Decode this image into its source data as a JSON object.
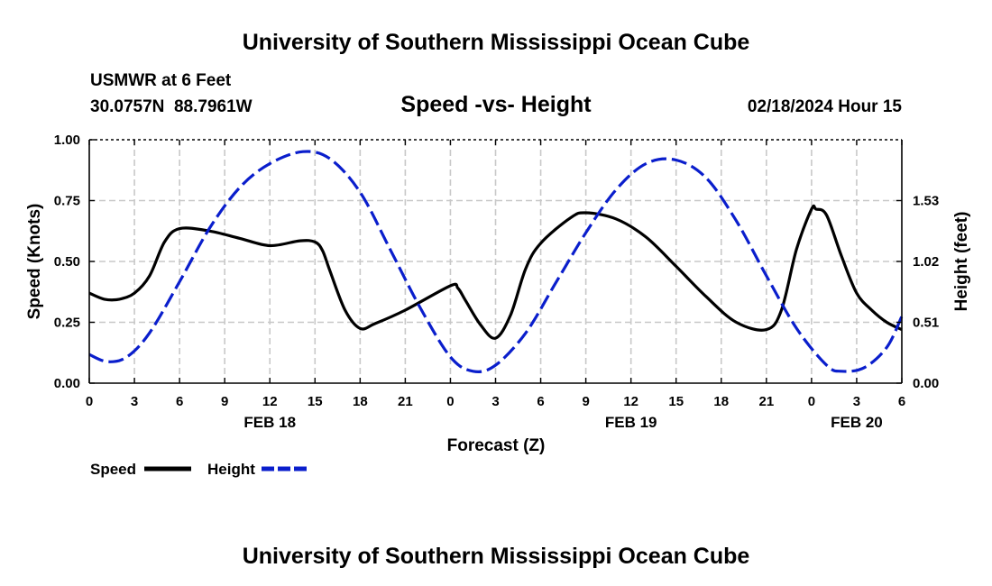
{
  "header": {
    "title": "University of Southern Mississippi Ocean Cube",
    "station": "USMWR at 6 Feet",
    "coords": "30.0757N  88.7961W",
    "datetime": "02/18/2024 Hour 15"
  },
  "footer": {
    "title": "University of Southern Mississippi Ocean Cube"
  },
  "chart_data": {
    "type": "line",
    "title": "Speed -vs- Height",
    "xlabel": "Forecast (Z)",
    "ylabel_left": "Speed (Knots)",
    "ylabel_right": "Height (feet)",
    "xlim": [
      0,
      54
    ],
    "ylim_left": [
      0,
      1.0
    ],
    "ylim_right": [
      0,
      2.04
    ],
    "grid": true,
    "x_ticks": [
      0,
      3,
      6,
      9,
      12,
      15,
      18,
      21,
      24,
      27,
      30,
      33,
      36,
      39,
      42,
      45,
      48,
      51,
      54
    ],
    "x_tick_labels": [
      "0",
      "3",
      "6",
      "9",
      "12",
      "15",
      "18",
      "21",
      "0",
      "3",
      "6",
      "9",
      "12",
      "15",
      "18",
      "21",
      "0",
      "3",
      "6"
    ],
    "left_ticks": [
      0,
      0.25,
      0.5,
      0.75,
      1.0
    ],
    "left_tick_labels": [
      "0.00",
      "0.25",
      "0.50",
      "0.75",
      "1.00"
    ],
    "right_ticks": [
      0,
      0.51,
      1.02,
      1.53
    ],
    "right_tick_labels": [
      "0.00",
      "0.51",
      "1.02",
      "1.53"
    ],
    "date_labels": [
      {
        "x": 12,
        "label": "FEB 18"
      },
      {
        "x": 36,
        "label": "FEB 19"
      },
      {
        "x": 51,
        "label": "FEB 20"
      }
    ],
    "series": [
      {
        "name": "Speed",
        "axis": "left",
        "color": "#000000",
        "dash": "solid",
        "x": [
          0,
          1,
          2,
          3,
          4,
          5,
          6,
          8,
          10,
          12,
          14,
          15,
          15.5,
          16,
          17,
          18,
          19,
          21,
          24,
          24.5,
          25,
          26,
          27,
          28,
          29,
          30,
          32,
          33,
          35,
          37,
          39,
          41,
          43,
          45,
          46,
          47,
          48,
          48.3,
          49,
          50,
          51,
          52,
          53,
          54
        ],
        "values": [
          0.37,
          0.345,
          0.345,
          0.37,
          0.44,
          0.58,
          0.635,
          0.625,
          0.595,
          0.565,
          0.585,
          0.58,
          0.545,
          0.46,
          0.3,
          0.225,
          0.245,
          0.3,
          0.4,
          0.39,
          0.34,
          0.24,
          0.185,
          0.28,
          0.47,
          0.575,
          0.68,
          0.7,
          0.675,
          0.6,
          0.48,
          0.355,
          0.25,
          0.22,
          0.3,
          0.55,
          0.715,
          0.715,
          0.69,
          0.52,
          0.37,
          0.3,
          0.25,
          0.22
        ]
      },
      {
        "name": "Height",
        "axis": "right",
        "color": "#0a1ecc",
        "dash": "dashed",
        "x": [
          0,
          1.2,
          2.5,
          4,
          6,
          8,
          10,
          12,
          14.2,
          16,
          18,
          20,
          22,
          24,
          25.5,
          27,
          29,
          31,
          33,
          35,
          37,
          39,
          41,
          43,
          45,
          47,
          49,
          50,
          51.5,
          53,
          54
        ],
        "values": [
          0.24,
          0.18,
          0.22,
          0.42,
          0.85,
          1.3,
          1.64,
          1.84,
          1.94,
          1.88,
          1.6,
          1.12,
          0.63,
          0.22,
          0.1,
          0.15,
          0.42,
          0.84,
          1.26,
          1.62,
          1.84,
          1.87,
          1.72,
          1.36,
          0.9,
          0.46,
          0.15,
          0.1,
          0.13,
          0.3,
          0.56
        ]
      }
    ],
    "legend": [
      {
        "label": "Speed",
        "color": "#000000",
        "dash": "solid"
      },
      {
        "label": "Height",
        "color": "#0a1ecc",
        "dash": "dashed"
      }
    ]
  }
}
